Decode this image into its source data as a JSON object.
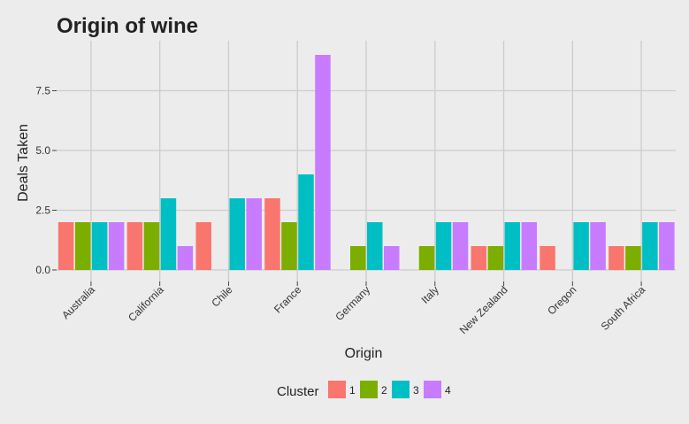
{
  "chart_data": {
    "type": "bar",
    "title": "Origin of wine",
    "xlabel": "Origin",
    "ylabel": "Deals Taken",
    "categories": [
      "Australia",
      "California",
      "Chile",
      "France",
      "Germany",
      "Italy",
      "New Zealand",
      "Oregon",
      "South Africa"
    ],
    "series": [
      {
        "name": "1",
        "values": [
          2,
          2,
          2,
          3,
          0,
          0,
          1,
          1,
          1
        ]
      },
      {
        "name": "2",
        "values": [
          2,
          2,
          0,
          2,
          1,
          1,
          1,
          0,
          1
        ]
      },
      {
        "name": "3",
        "values": [
          2,
          3,
          3,
          4,
          2,
          2,
          2,
          2,
          2
        ]
      },
      {
        "name": "4",
        "values": [
          2,
          1,
          3,
          9,
          1,
          2,
          2,
          2,
          2
        ]
      }
    ],
    "yticks": [
      "0.0",
      "2.5",
      "5.0",
      "7.5"
    ],
    "ylim": [
      0,
      9
    ],
    "grid": true,
    "legend": {
      "title": "Cluster",
      "placement": "bottom"
    },
    "colors": {
      "series": [
        "#F8766D",
        "#7CAE00",
        "#00BFC4",
        "#C77CFF"
      ],
      "panel": "#ececec",
      "grid": "#cccccc"
    }
  }
}
